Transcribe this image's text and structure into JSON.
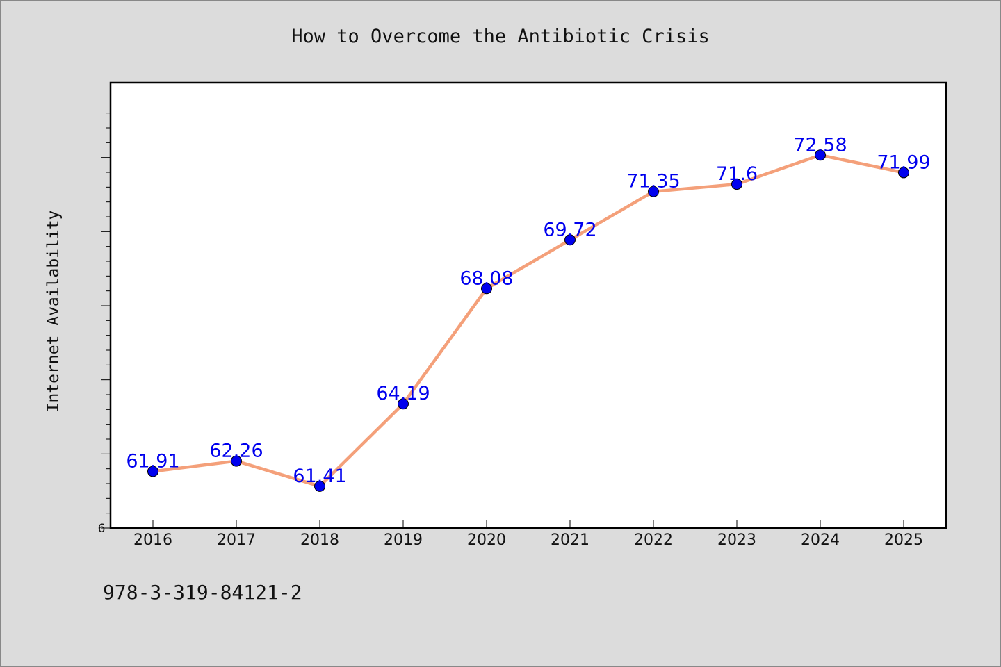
{
  "chart_data": {
    "type": "line",
    "title": "How to Overcome the Antibiotic Crisis",
    "ylabel": "Internet Availability",
    "xlabel": "",
    "footer_text": "978-3-319-84121-2",
    "categories": [
      "2016",
      "2017",
      "2018",
      "2019",
      "2020",
      "2021",
      "2022",
      "2023",
      "2024",
      "2025"
    ],
    "series": [
      {
        "values": [
          61.91,
          62.26,
          61.41,
          64.19,
          68.08,
          69.72,
          71.35,
          71.6,
          72.58,
          71.99
        ],
        "labels": [
          "61.91",
          "62.26",
          "61.41",
          "64.19",
          "68.08",
          "69.72",
          "71.35",
          "71.6",
          "72.58",
          "71.99"
        ],
        "line_color": "#f4a07a",
        "marker_color": "#0000ee",
        "label_color": "#0000ee"
      }
    ],
    "ylim": [
      60,
      75
    ],
    "y_tick_label": "6",
    "grid": false,
    "legend": "none"
  }
}
